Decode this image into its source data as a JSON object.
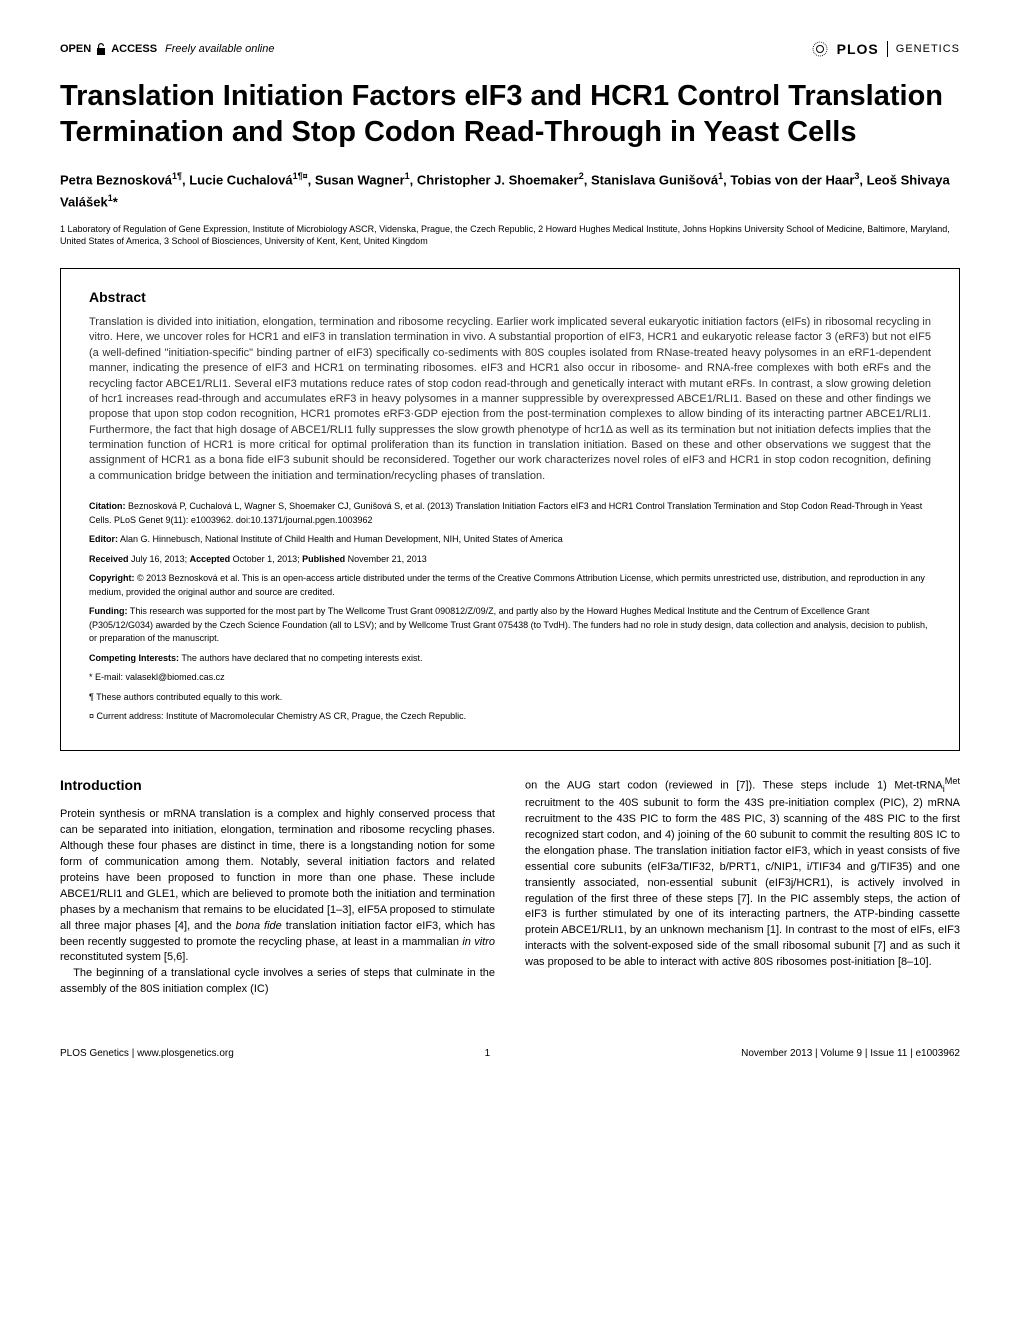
{
  "colors": {
    "text": "#000000",
    "background": "#ffffff",
    "abstract_text": "#333333",
    "border": "#000000"
  },
  "header": {
    "open_access_label": "OPEN",
    "access_label": "ACCESS",
    "freely_label": "Freely available online",
    "plos": "PLOS",
    "genetics": "GENETICS"
  },
  "title": "Translation Initiation Factors eIF3 and HCR1 Control Translation Termination and Stop Codon Read-Through in Yeast Cells",
  "authors_html": "Petra Beznosková<sup>1¶</sup>, Lucie Cuchalová<sup>1¶¤</sup>, Susan Wagner<sup>1</sup>, Christopher J. Shoemaker<sup>2</sup>, Stanislava Gunišová<sup>1</sup>, Tobias von der Haar<sup>3</sup>, Leoš Shivaya Valášek<sup>1</sup>*",
  "affiliations": "1 Laboratory of Regulation of Gene Expression, Institute of Microbiology ASCR, Videnska, Prague, the Czech Republic, 2 Howard Hughes Medical Institute, Johns Hopkins University School of Medicine, Baltimore, Maryland, United States of America, 3 School of Biosciences, University of Kent, Kent, United Kingdom",
  "abstract": {
    "heading": "Abstract",
    "text": "Translation is divided into initiation, elongation, termination and ribosome recycling. Earlier work implicated several eukaryotic initiation factors (eIFs) in ribosomal recycling in vitro. Here, we uncover roles for HCR1 and eIF3 in translation termination in vivo. A substantial proportion of eIF3, HCR1 and eukaryotic release factor 3 (eRF3) but not eIF5 (a well-defined \"initiation-specific\" binding partner of eIF3) specifically co-sediments with 80S couples isolated from RNase-treated heavy polysomes in an eRF1-dependent manner, indicating the presence of eIF3 and HCR1 on terminating ribosomes. eIF3 and HCR1 also occur in ribosome- and RNA-free complexes with both eRFs and the recycling factor ABCE1/RLI1. Several eIF3 mutations reduce rates of stop codon read-through and genetically interact with mutant eRFs. In contrast, a slow growing deletion of hcr1 increases read-through and accumulates eRF3 in heavy polysomes in a manner suppressible by overexpressed ABCE1/RLI1. Based on these and other findings we propose that upon stop codon recognition, HCR1 promotes eRF3·GDP ejection from the post-termination complexes to allow binding of its interacting partner ABCE1/RLI1. Furthermore, the fact that high dosage of ABCE1/RLI1 fully suppresses the slow growth phenotype of hcr1Δ as well as its termination but not initiation defects implies that the termination function of HCR1 is more critical for optimal proliferation than its function in translation initiation. Based on these and other observations we suggest that the assignment of HCR1 as a bona fide eIF3 subunit should be reconsidered. Together our work characterizes novel roles of eIF3 and HCR1 in stop codon recognition, defining a communication bridge between the initiation and termination/recycling phases of translation."
  },
  "meta": {
    "citation_label": "Citation:",
    "citation": " Beznosková P, Cuchalová L, Wagner S, Shoemaker CJ, Gunišová S, et al. (2013) Translation Initiation Factors eIF3 and HCR1 Control Translation Termination and Stop Codon Read-Through in Yeast Cells. PLoS Genet 9(11): e1003962. doi:10.1371/journal.pgen.1003962",
    "editor_label": "Editor:",
    "editor": " Alan G. Hinnebusch, National Institute of Child Health and Human Development, NIH, United States of America",
    "dates_received_label": "Received",
    "dates_received": " July 16, 2013; ",
    "dates_accepted_label": "Accepted",
    "dates_accepted": " October 1, 2013; ",
    "dates_published_label": "Published",
    "dates_published": " November 21, 2013",
    "copyright_label": "Copyright:",
    "copyright": " © 2013 Beznosková et al. This is an open-access article distributed under the terms of the Creative Commons Attribution License, which permits unrestricted use, distribution, and reproduction in any medium, provided the original author and source are credited.",
    "funding_label": "Funding:",
    "funding": " This research was supported for the most part by The Wellcome Trust Grant 090812/Z/09/Z, and partly also by the Howard Hughes Medical Institute and the Centrum of Excellence Grant (P305/12/G034) awarded by the Czech Science Foundation (all to LSV); and by Wellcome Trust Grant 075438 (to TvdH). The funders had no role in study design, data collection and analysis, decision to publish, or preparation of the manuscript.",
    "competing_label": "Competing Interests:",
    "competing": " The authors have declared that no competing interests exist.",
    "email": "* E-mail: valasekl@biomed.cas.cz",
    "equal": "¶ These authors contributed equally to this work.",
    "current": "¤ Current address: Institute of Macromolecular Chemistry AS CR, Prague, the Czech Republic."
  },
  "intro": {
    "heading": "Introduction",
    "col1_p1": "Protein synthesis or mRNA translation is a complex and highly conserved process that can be separated into initiation, elongation, termination and ribosome recycling phases. Although these four phases are distinct in time, there is a longstanding notion for some form of communication among them. Notably, several initiation factors and related proteins have been proposed to function in more than one phase. These include ABCE1/RLI1 and GLE1, which are believed to promote both the initiation and termination phases by a mechanism that remains to be elucidated [1–3], eIF5A proposed to stimulate all three major phases [4], and the bona fide translation initiation factor eIF3, which has been recently suggested to promote the recycling phase, at least in a mammalian in vitro reconstituted system [5,6].",
    "col1_p2": "The beginning of a translational cycle involves a series of steps that culminate in the assembly of the 80S initiation complex (IC)",
    "col2_p1": "on the AUG start codon (reviewed in [7]). These steps include 1) Met-tRNAiMet recruitment to the 40S subunit to form the 43S pre-initiation complex (PIC), 2) mRNA recruitment to the 43S PIC to form the 48S PIC, 3) scanning of the 48S PIC to the first recognized start codon, and 4) joining of the 60 subunit to commit the resulting 80S IC to the elongation phase. The translation initiation factor eIF3, which in yeast consists of five essential core subunits (eIF3a/TIF32, b/PRT1, c/NIP1, i/TIF34 and g/TIF35) and one transiently associated, non-essential subunit (eIF3j/HCR1), is actively involved in regulation of the first three of these steps [7]. In the PIC assembly steps, the action of eIF3 is further stimulated by one of its interacting partners, the ATP-binding cassette protein ABCE1/RLI1, by an unknown mechanism [1]. In contrast to the most of eIFs, eIF3 interacts with the solvent-exposed side of the small ribosomal subunit [7] and as such it was proposed to be able to interact with active 80S ribosomes post-initiation [8–10]."
  },
  "footer": {
    "journal": "PLOS Genetics | www.plosgenetics.org",
    "page": "1",
    "issue": "November 2013 | Volume 9 | Issue 11 | e1003962"
  }
}
